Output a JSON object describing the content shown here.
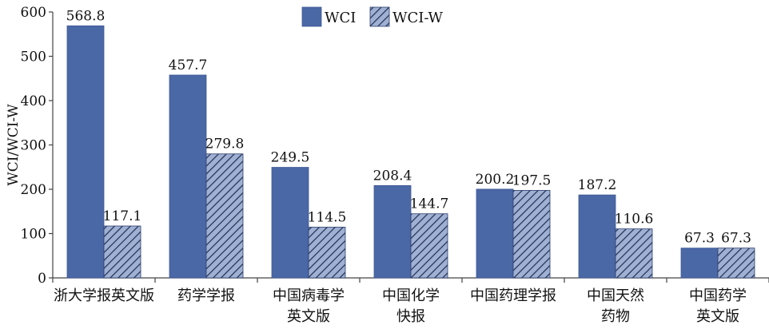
{
  "chart_data": {
    "type": "bar",
    "ylabel": "WCI/WCI-W",
    "ylim": [
      0,
      600
    ],
    "yticks": [
      0,
      100,
      200,
      300,
      400,
      500,
      600
    ],
    "grid": false,
    "legend_position": "top-center",
    "categories": [
      [
        "浙大学报英文版"
      ],
      [
        "药学学报"
      ],
      [
        "中国病毒学",
        "英文版"
      ],
      [
        "中国化学",
        "快报"
      ],
      [
        "中国药理学报"
      ],
      [
        "中国天然",
        "药物"
      ],
      [
        "中国药学",
        "英文版"
      ]
    ],
    "series": [
      {
        "name": "WCI",
        "values": [
          568.8,
          457.7,
          249.5,
          208.4,
          200.2,
          187.2,
          67.3
        ],
        "color": "#4a67a6",
        "pattern": "solid"
      },
      {
        "name": "WCI-W",
        "values": [
          117.1,
          279.8,
          114.5,
          144.7,
          197.5,
          110.6,
          67.3
        ],
        "color": "#8aa0c8",
        "pattern": "hatched"
      }
    ]
  }
}
